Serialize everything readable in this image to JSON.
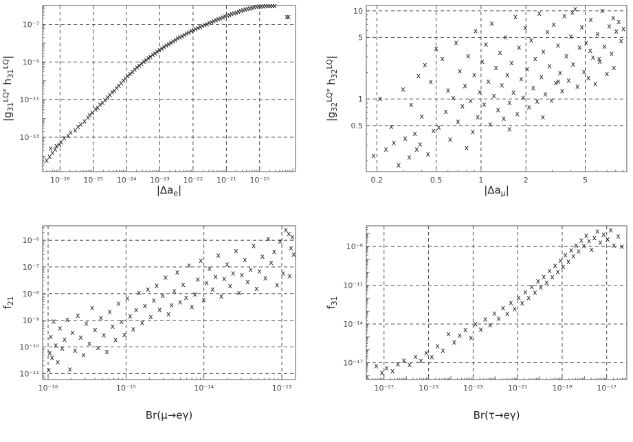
{
  "figure": {
    "caption": "",
    "marker_glyph": "x",
    "colors": {
      "marker": "#222222",
      "frame": "#555555",
      "grid": "#333333",
      "text": "#222222",
      "tick_label": "#444444"
    }
  },
  "chart_data": [
    {
      "type": "scatter",
      "x_scale": "log",
      "y_scale": "log",
      "xlabel": "|Δa_e|",
      "ylabel": "|g_31^LQ* h_31^LQ|",
      "xlim": [
        3e-27,
        1.2e-19
      ],
      "ylim": [
        1.5e-15,
        1e-06
      ],
      "x_ticks": [
        1e-26,
        1e-25,
        1e-24,
        1e-23,
        1e-22,
        1e-21,
        1e-20
      ],
      "x_tick_labels": [
        "10⁻²⁶",
        "10⁻²⁵",
        "10⁻²⁴",
        "10⁻²³",
        "10⁻²²",
        "10⁻²¹",
        "10⁻²⁰"
      ],
      "y_ticks": [
        1e-13,
        1e-11,
        1e-09,
        1e-07
      ],
      "y_tick_labels": [
        "10⁻¹³",
        "10⁻¹¹",
        "10⁻⁹",
        "10⁻⁷"
      ],
      "grid": true,
      "x": [
        3.98e-27,
        4.87e-27,
        5.25e-27,
        5.94e-27,
        7.76e-27,
        7.13e-27,
        1.08e-26,
        9.51e-27,
        1.34e-26,
        1.75e-26,
        2.09e-26,
        2.86e-26,
        3.48e-26,
        4.21e-26,
        5.47e-26,
        6.88e-26,
        7.76e-26,
        9.29e-26,
        1.17e-25,
        1.36e-25,
        1.59e-25,
        1.92e-25,
        2.26e-25,
        2.7e-25,
        3.17e-25,
        3.67e-25,
        4.32e-25,
        5.03e-25,
        5.85e-25,
        6.91e-25,
        8.02e-25,
        9.26e-25,
        1.08e-24,
        1.28e-24,
        1.5e-24,
        1.76e-24,
        2.05e-24,
        2.38e-24,
        2.8e-24,
        3.3e-24,
        3.84e-24,
        4.49e-24,
        5.23e-24,
        6.13e-24,
        7.16e-24,
        8.36e-24,
        9.82e-24,
        1.15e-23,
        1.34e-23,
        1.57e-23,
        1.83e-23,
        2.14e-23,
        2.51e-23,
        2.93e-23,
        3.42e-23,
        4e-23,
        4.67e-23,
        5.47e-23,
        6.39e-23,
        7.47e-23,
        8.73e-23,
        1.02e-22,
        1.19e-22,
        1.4e-22,
        1.63e-22,
        1.91e-22,
        2.23e-22,
        2.61e-22,
        3.05e-22,
        3.57e-22,
        4.17e-22,
        4.88e-22,
        5.7e-22,
        6.66e-22,
        7.79e-22,
        9.1e-22,
        1.06e-21,
        1.24e-21,
        1.45e-21,
        1.7e-21,
        1.99e-21,
        2.32e-21,
        2.72e-21,
        3.18e-21,
        3.71e-21,
        4.34e-21,
        5.07e-21,
        5.93e-21,
        6.93e-21,
        8.1e-21,
        9.47e-21,
        1.11e-20,
        1.29e-20,
        1.51e-20,
        1.77e-20,
        2.07e-20,
        2.42e-20,
        2.83e-20,
        6.5e-20,
        7.4e-20
      ],
      "y": [
        6.2e-15,
        9.8e-15,
        2.7e-14,
        1.6e-14,
        3.6e-14,
        2.4e-14,
        5.9e-14,
        4.3e-14,
        9.4e-14,
        1.3e-13,
        1.9e-13,
        2.5e-13,
        3.8e-13,
        5.1e-13,
        7.4e-13,
        1.2e-12,
        1.6e-12,
        2.1e-12,
        3.2e-12,
        4e-12,
        5.8e-12,
        7.3e-12,
        1e-11,
        1.4e-11,
        1.9e-11,
        2.6e-11,
        3.1e-11,
        4.4e-11,
        6e-11,
        8e-11,
        1.1e-10,
        1.4e-10,
        1.9e-10,
        2.5e-10,
        3.2e-10,
        4.3e-10,
        5.5e-10,
        6.6e-10,
        8.8e-10,
        1.1e-09,
        1.3e-09,
        1.7e-09,
        2e-09,
        2.6e-09,
        3.1e-09,
        3.8e-09,
        4.6e-09,
        5.5e-09,
        6.7e-09,
        7.9e-09,
        9.6e-09,
        1.1e-08,
        1.3e-08,
        1.6e-08,
        1.9e-08,
        2.2e-08,
        2.5e-08,
        3e-08,
        3.5e-08,
        4e-08,
        4.6e-08,
        5.3e-08,
        6e-08,
        6.9e-08,
        7.8e-08,
        8.9e-08,
        1e-07,
        1.1e-07,
        1.3e-07,
        1.4e-07,
        1.6e-07,
        1.8e-07,
        2e-07,
        2.2e-07,
        2.5e-07,
        2.8e-07,
        3.1e-07,
        3.4e-07,
        3.8e-07,
        4.1e-07,
        4.5e-07,
        5e-07,
        5.5e-07,
        6e-07,
        6.5e-07,
        7e-07,
        7.6e-07,
        8.2e-07,
        8.8e-07,
        9.2e-07,
        9.5e-07,
        9.6e-07,
        9.7e-07,
        9.8e-07,
        9.8e-07,
        9.9e-07,
        9.9e-07,
        9.9e-07,
        2.6e-07,
        2.6e-07
      ]
    },
    {
      "type": "scatter",
      "x_scale": "log",
      "y_scale": "log",
      "xlabel": "|Δa_μ|",
      "ylabel": "|g_32^LQ* h_32^LQ|",
      "xlim": [
        0.17,
        9.5
      ],
      "ylim": [
        0.15,
        11.5
      ],
      "x_ticks": [
        0.2,
        0.5,
        1,
        2,
        5
      ],
      "x_tick_labels": [
        "0.2",
        "0.5",
        "1",
        "2",
        "5"
      ],
      "y_ticks": [
        0.5,
        1,
        5,
        10
      ],
      "y_tick_labels": [
        "0.5",
        "1",
        "5",
        "10"
      ],
      "grid": true,
      "x": [
        0.19,
        0.21,
        0.23,
        0.25,
        0.26,
        0.28,
        0.3,
        0.31,
        0.33,
        0.34,
        0.36,
        0.37,
        0.38,
        0.39,
        0.4,
        0.42,
        0.44,
        0.46,
        0.48,
        0.5,
        0.52,
        0.55,
        0.58,
        0.6,
        0.62,
        0.65,
        0.68,
        0.7,
        0.72,
        0.75,
        0.78,
        0.8,
        0.82,
        0.85,
        0.88,
        0.9,
        0.92,
        0.95,
        0.98,
        1.02,
        1.05,
        1.08,
        1.12,
        1.15,
        1.18,
        1.22,
        1.26,
        1.3,
        1.34,
        1.38,
        1.42,
        1.46,
        1.5,
        1.55,
        1.6,
        1.65,
        1.7,
        1.75,
        1.8,
        1.86,
        1.92,
        1.98,
        2.04,
        2.1,
        2.17,
        2.24,
        2.31,
        2.38,
        2.46,
        2.54,
        2.62,
        2.7,
        2.79,
        2.88,
        2.97,
        3.07,
        3.17,
        3.28,
        3.39,
        3.5,
        3.62,
        3.74,
        3.87,
        4.0,
        4.14,
        4.28,
        4.43,
        4.58,
        4.74,
        4.9,
        5.07,
        5.25,
        5.44,
        5.63,
        5.83,
        6.04,
        6.26,
        6.49,
        6.73,
        6.98,
        7.24,
        7.51,
        7.79,
        8.08,
        8.39,
        8.7,
        9.02,
        1.55,
        2.6,
        3.3,
        4.1,
        5.4,
        6.2,
        7.7
      ],
      "y": [
        0.23,
        1.02,
        0.27,
        0.49,
        0.32,
        0.18,
        1.3,
        0.36,
        0.22,
        0.87,
        0.41,
        0.27,
        1.85,
        0.31,
        0.64,
        2.45,
        0.24,
        1.58,
        0.44,
        3.8,
        0.48,
        2.9,
        0.73,
        1.27,
        0.35,
        1.04,
        4.4,
        0.56,
        2.1,
        0.84,
        1.42,
        0.28,
        3.1,
        0.97,
        0.43,
        1.9,
        6.0,
        0.63,
        1.21,
        2.7,
        0.88,
        4.2,
        1.6,
        0.52,
        7.3,
        1.1,
        2.3,
        0.76,
        3.4,
        1.45,
        0.61,
        5.1,
        1.9,
        0.92,
        2.6,
        1.2,
        8.6,
        0.68,
        3.9,
        1.7,
        1.05,
        6.5,
        2.2,
        0.82,
        4.7,
        1.35,
        2.9,
        0.95,
        9.4,
        1.8,
        3.5,
        1.15,
        5.8,
        2.4,
        0.98,
        7.1,
        1.55,
        4.1,
        2.0,
        1.25,
        8.9,
        3.1,
        1.65,
        5.2,
        2.5,
        10.6,
        1.4,
        3.9,
        6.6,
        2.05,
        4.4,
        1.75,
        8.0,
        3.0,
        1.5,
        5.5,
        2.7,
        10.1,
        4.0,
        1.95,
        6.8,
        3.3,
        2.3,
        5.9,
        7.6,
        4.6,
        6.3,
        0.46,
        0.63,
        1.6,
        9.7,
        3.6,
        2.9,
        8.4
      ]
    },
    {
      "type": "scatter",
      "x_scale": "log",
      "y_scale": "log",
      "xlabel": "Br(μ→eγ)",
      "ylabel": "f_21",
      "xlim": [
        8.5e-17,
        1.5e-13
      ],
      "ylim": [
        6e-12,
        3.5e-06
      ],
      "x_ticks": [
        1e-16,
        1e-15,
        1e-14,
        1e-13
      ],
      "x_tick_labels": [
        "10⁻¹⁶",
        "10⁻¹⁵",
        "10⁻¹⁴",
        "10⁻¹³"
      ],
      "y_ticks": [
        1e-11,
        1e-10,
        1e-09,
        1e-08,
        1e-07,
        1e-06
      ],
      "y_tick_labels": [
        "10⁻¹¹",
        "10⁻¹⁰",
        "10⁻⁹",
        "10⁻⁸",
        "10⁻⁷",
        "10⁻⁶"
      ],
      "grid": true,
      "x": [
        1.02e-16,
        1.05e-16,
        1.08e-16,
        1.12e-16,
        1.18e-16,
        1.25e-16,
        1.33e-16,
        1.42e-16,
        1.52e-16,
        1.63e-16,
        1.76e-16,
        1.9e-16,
        2.05e-16,
        2.22e-16,
        2.41e-16,
        2.62e-16,
        2.85e-16,
        3.1e-16,
        3.38e-16,
        3.68e-16,
        4.01e-16,
        4.37e-16,
        4.77e-16,
        5.2e-16,
        5.67e-16,
        6.18e-16,
        6.74e-16,
        7.35e-16,
        8.01e-16,
        8.74e-16,
        9.53e-16,
        1.04e-15,
        1.13e-15,
        1.24e-15,
        1.35e-15,
        1.47e-15,
        1.61e-15,
        1.75e-15,
        1.91e-15,
        2.08e-15,
        2.27e-15,
        2.48e-15,
        2.7e-15,
        2.95e-15,
        3.22e-15,
        3.51e-15,
        3.83e-15,
        4.17e-15,
        4.55e-15,
        4.96e-15,
        5.41e-15,
        5.9e-15,
        6.44e-15,
        7.02e-15,
        7.66e-15,
        8.35e-15,
        9.11e-15,
        9.94e-15,
        1.08e-14,
        1.18e-14,
        1.29e-14,
        1.41e-14,
        1.53e-14,
        1.67e-14,
        1.82e-14,
        1.99e-14,
        2.17e-14,
        2.37e-14,
        2.58e-14,
        2.82e-14,
        3.07e-14,
        3.35e-14,
        3.65e-14,
        3.98e-14,
        4.35e-14,
        4.74e-14,
        5.17e-14,
        5.64e-14,
        6.15e-14,
        6.71e-14,
        7.32e-14,
        7.98e-14,
        8.71e-14,
        9.5e-14,
        1.04e-13,
        1.13e-13,
        1.23e-13,
        1.26e-13,
        1.31e-13,
        1.37e-13,
        1.42e-13
      ],
      "y": [
        1.4e-11,
        6.2e-11,
        2.5e-10,
        4.1e-11,
        9.5e-10,
        1.2e-10,
        2.8e-11,
        5.3e-10,
        9.1e-11,
        2e-10,
        1.1e-09,
        1.5e-11,
        3.6e-10,
        7.7e-11,
        1.6e-09,
        2.4e-10,
        5.2e-11,
        8e-10,
        1.4e-10,
        3e-09,
        4.6e-10,
        9.8e-11,
        1.3e-09,
        2.9e-10,
        6.8e-11,
        2.2e-09,
        6.1e-10,
        1.9e-10,
        4.4e-09,
        9.2e-10,
        3e-10,
        7e-09,
        1.5e-09,
        4.8e-10,
        2.5e-09,
        1.1e-08,
        8.5e-10,
        3.6e-09,
        1.5e-08,
        1.4e-09,
        5.8e-09,
        2.1e-08,
        2.6e-09,
        8.9e-09,
        4.2e-08,
        1.8e-09,
        3.8e-09,
        1.3e-08,
        6.6e-08,
        5e-09,
        2.3e-08,
        7.4e-09,
        1.2e-07,
        3.3e-09,
        1e-08,
        3.5e-08,
        1.8e-07,
        6.2e-09,
        2.6e-08,
        9.1e-08,
        1.5e-08,
        4.5e-08,
        2.8e-07,
        8.2e-09,
        3.8e-08,
        1.3e-07,
        2e-08,
        6e-08,
        4.1e-07,
        1.1e-08,
        5.2e-08,
        1.9e-07,
        2.9e-08,
        8.4e-08,
        6.5e-07,
        1.6e-08,
        7.2e-08,
        2.6e-07,
        4e-08,
        1.2e-06,
        1.5e-07,
        3.9e-07,
        2.2e-08,
        9.5e-07,
        6e-08,
        2.5e-06,
        1.8e-06,
        4.8e-08,
        5.2e-07,
        1.4e-06,
        3.1e-07
      ]
    },
    {
      "type": "scatter",
      "x_scale": "log",
      "y_scale": "log",
      "xlabel": "Br(τ→eγ)",
      "ylabel": "f_31",
      "xlim": [
        1.6e-28,
        8e-17
      ],
      "ylim": [
        5e-19,
        4e-07
      ],
      "x_ticks": [
        1e-27,
        1e-25,
        1e-23,
        1e-21,
        1e-19,
        1e-17
      ],
      "x_tick_labels": [
        "10⁻²⁷",
        "10⁻²⁵",
        "10⁻²³",
        "10⁻²¹",
        "10⁻¹⁹",
        "10⁻¹⁷"
      ],
      "y_ticks": [
        1e-17,
        1e-14,
        1e-11,
        1e-08
      ],
      "y_tick_labels": [
        "10⁻¹⁷",
        "10⁻¹⁴",
        "10⁻¹¹",
        "10⁻⁸"
      ],
      "grid": true,
      "x": [
        4.5e-28,
        8e-28,
        1.3e-27,
        2.4e-27,
        4.2e-27,
        7.8e-27,
        1.4e-26,
        2.6e-26,
        4.5e-26,
        7.9e-26,
        1.4e-25,
        2.5e-25,
        4.4e-25,
        7.8e-25,
        1.4e-24,
        2.5e-24,
        4.5e-24,
        8e-24,
        1.3e-23,
        2.2e-23,
        3.5e-23,
        5.8e-23,
        9.1e-23,
        1.4e-22,
        2.2e-22,
        3.4e-22,
        5e-22,
        7.4e-22,
        1.1e-21,
        1.6e-21,
        2.2e-21,
        3.1e-21,
        4.3e-21,
        6e-21,
        8.2e-21,
        1.1e-20,
        1.5e-20,
        2e-20,
        2.7e-20,
        3.6e-20,
        4.8e-20,
        6.3e-20,
        8.3e-20,
        1.1e-19,
        1.4e-19,
        1.9e-19,
        2.5e-19,
        3.2e-19,
        4.2e-19,
        5.5e-19,
        7.2e-19,
        9.4e-19,
        1.2e-18,
        1.6e-18,
        2.1e-18,
        2.8e-18,
        3.8e-18,
        5.2e-18,
        7.3e-18,
        1.1e-17,
        1.5e-17,
        2.1e-17,
        3.3e-17,
        4.8e-17
      ],
      "y": [
        6e-18,
        1.8e-18,
        4.2e-18,
        2.5e-18,
        8.3e-18,
        1.6e-17,
        7.6e-18,
        3.3e-17,
        1.5e-17,
        6.3e-17,
        3e-17,
        2.1e-16,
        9.7e-17,
        1.8e-15,
        4.2e-16,
        1.4e-15,
        3.7e-15,
        9.2e-16,
        1.1e-14,
        4e-15,
        2.6e-14,
        9.1e-15,
        7.2e-14,
        2.9e-14,
        1.9e-13,
        6.6e-14,
        4.8e-13,
        1.6e-13,
        1.2e-12,
        4.5e-13,
        3.1e-12,
        1.1e-12,
        8.4e-12,
        2.9e-12,
        2.2e-11,
        7.5e-12,
        5.1e-11,
        1.8e-11,
        1.4e-10,
        4.7e-11,
        3.5e-10,
        1.2e-10,
        9e-10,
        3e-10,
        2.3e-09,
        7.4e-10,
        5.4e-09,
        1.9e-09,
        1.3e-08,
        4.6e-09,
        3.3e-08,
        1.2e-08,
        7.8e-08,
        2.9e-08,
        6.2e-09,
        5.1e-08,
        1.6e-07,
        2.2e-08,
        9.4e-08,
        3.8e-08,
        2.1e-07,
        1.3e-08,
        6.7e-08,
        1.1e-08
      ]
    }
  ]
}
